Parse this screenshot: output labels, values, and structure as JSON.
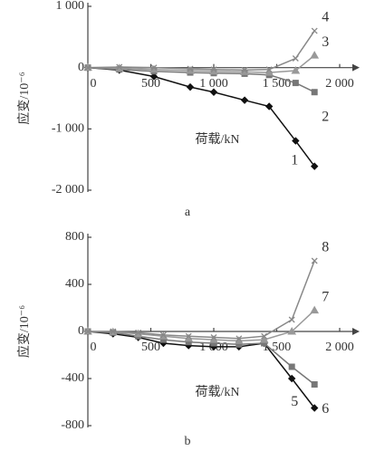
{
  "chart_data": [
    {
      "type": "line",
      "label": "a",
      "xlabel": "荷载/kN",
      "ylabel": "应变/10⁻⁶",
      "xlim": [
        0,
        2000
      ],
      "ylim": [
        -2000,
        1000
      ],
      "xticks": [
        0,
        500,
        {
          "value": 1000,
          "label": "1 000"
        },
        {
          "value": 1500,
          "label": "1 500"
        },
        {
          "value": 2000,
          "label": "2 000"
        }
      ],
      "yticks": [
        {
          "value": 1000,
          "label": "1 000"
        },
        0,
        {
          "value": -1000,
          "label": "-1 000"
        },
        {
          "value": -2000,
          "label": "-2 000"
        }
      ],
      "series": [
        {
          "name": "1",
          "color": "#111111",
          "marker": "diamond",
          "x": [
            0,
            250,
            525,
            813,
            1000,
            1245,
            1440,
            1650,
            1800
          ],
          "values": [
            0,
            -40,
            -145,
            -317,
            -400,
            -532,
            -633,
            -1195,
            -1610
          ]
        },
        {
          "name": "2",
          "color": "#777777",
          "marker": "square",
          "x": [
            0,
            250,
            525,
            813,
            1000,
            1245,
            1440,
            1650,
            1800
          ],
          "values": [
            0,
            -30,
            -60,
            -80,
            -90,
            -100,
            -120,
            -250,
            -400
          ]
        },
        {
          "name": "3",
          "color": "#999999",
          "marker": "triangle",
          "x": [
            0,
            250,
            525,
            813,
            1000,
            1245,
            1440,
            1650,
            1800
          ],
          "values": [
            0,
            -10,
            -30,
            -50,
            -60,
            -70,
            -80,
            -50,
            200
          ]
        },
        {
          "name": "4",
          "color": "#888888",
          "marker": "x",
          "x": [
            0,
            250,
            525,
            813,
            1000,
            1245,
            1440,
            1650,
            1800
          ],
          "values": [
            0,
            10,
            0,
            -20,
            -30,
            -40,
            -30,
            150,
            600
          ]
        }
      ]
    },
    {
      "type": "line",
      "label": "b",
      "xlabel": "荷载/kN",
      "ylabel": "应变/10⁻⁶",
      "xlim": [
        0,
        2000
      ],
      "ylim": [
        -800,
        800
      ],
      "xticks": [
        0,
        500,
        {
          "value": 1000,
          "label": "1 000"
        },
        {
          "value": 1500,
          "label": "1 500"
        },
        {
          "value": 2000,
          "label": "2 000"
        }
      ],
      "yticks": [
        800,
        400,
        0,
        -400,
        -800
      ],
      "series": [
        {
          "name": "5",
          "color": "#111111",
          "marker": "diamond",
          "x": [
            0,
            200,
            400,
            600,
            800,
            1000,
            1200,
            1400,
            1620,
            1800
          ],
          "values": [
            0,
            -20,
            -50,
            -100,
            -120,
            -130,
            -130,
            -100,
            -400,
            -650
          ]
        },
        {
          "name": "6",
          "color": "#777777",
          "marker": "square",
          "x": [
            0,
            200,
            400,
            600,
            800,
            1000,
            1200,
            1400,
            1620,
            1800
          ],
          "values": [
            0,
            -10,
            -40,
            -70,
            -90,
            -100,
            -110,
            -100,
            -300,
            -450
          ]
        },
        {
          "name": "7",
          "color": "#999999",
          "marker": "triangle",
          "x": [
            0,
            200,
            400,
            600,
            800,
            1000,
            1200,
            1400,
            1620,
            1800
          ],
          "values": [
            0,
            -5,
            -20,
            -40,
            -60,
            -70,
            -80,
            -70,
            0,
            180
          ]
        },
        {
          "name": "8",
          "color": "#888888",
          "marker": "x",
          "x": [
            0,
            200,
            400,
            600,
            800,
            1000,
            1200,
            1400,
            1620,
            1800
          ],
          "values": [
            0,
            0,
            -10,
            -30,
            -40,
            -50,
            -60,
            -40,
            100,
            600
          ]
        }
      ]
    }
  ]
}
